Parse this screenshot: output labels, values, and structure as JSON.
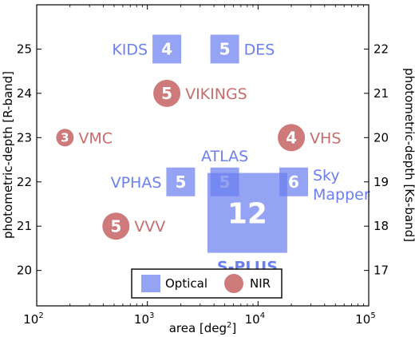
{
  "chart_data": {
    "type": "scatter",
    "xlabel": "area [deg²]",
    "ylabel_left": "photometric-depth [R-band]",
    "ylabel_right": "photometric-depth [Ks-band]",
    "x_scale": "log",
    "xlim": [
      100,
      100000
    ],
    "ylim_left": [
      19.2,
      26
    ],
    "ylim_right": [
      16.2,
      23
    ],
    "x_ticks": [
      {
        "value": 100,
        "base": "10",
        "exp": "2"
      },
      {
        "value": 1000,
        "base": "10",
        "exp": "3"
      },
      {
        "value": 10000,
        "base": "10",
        "exp": "4"
      },
      {
        "value": 100000,
        "base": "10",
        "exp": "5"
      }
    ],
    "y_ticks_left": [
      "20",
      "21",
      "22",
      "23",
      "24",
      "25"
    ],
    "y_ticks_right": [
      "17",
      "18",
      "19",
      "20",
      "21",
      "22"
    ],
    "legend": {
      "placement": "bottom-center",
      "entries": [
        {
          "label": "Optical",
          "shape": "square",
          "color": "#6b7ff0"
        },
        {
          "label": "NIR",
          "shape": "circle",
          "color": "#c96b6b"
        }
      ]
    },
    "series": [
      {
        "name": "Optical",
        "color": "#6b7ff0",
        "points": [
          {
            "label": "KIDS",
            "area": 1500,
            "depth_r": 25.0,
            "filters": 4,
            "label_side": "left"
          },
          {
            "label": "DES",
            "area": 5000,
            "depth_r": 25.0,
            "filters": 5,
            "label_side": "right"
          },
          {
            "label": "VPHAS",
            "area": 2000,
            "depth_r": 22.0,
            "filters": 5,
            "label_side": "left"
          },
          {
            "label": "ATLAS",
            "area": 5000,
            "depth_r": 22.0,
            "filters": 5,
            "label_side": "top"
          },
          {
            "label": "Sky\nMapper",
            "area": 21000,
            "depth_r": 22.0,
            "filters": 6,
            "label_side": "right"
          },
          {
            "label": "S-PLUS",
            "area": 8000,
            "depth_r": 21.3,
            "filters": 12,
            "label_side": "bottom"
          }
        ]
      },
      {
        "name": "NIR",
        "color": "#c96b6b",
        "points": [
          {
            "label": "VIKINGS",
            "area": 1500,
            "depth_ks": 21.0,
            "filters": 5,
            "label_side": "right"
          },
          {
            "label": "VMC",
            "area": 180,
            "depth_ks": 20.0,
            "filters": 3,
            "label_side": "right"
          },
          {
            "label": "VHS",
            "area": 20000,
            "depth_ks": 20.0,
            "filters": 4,
            "label_side": "right"
          },
          {
            "label": "VVV",
            "area": 520,
            "depth_ks": 18.0,
            "filters": 5,
            "label_side": "right"
          }
        ]
      }
    ]
  }
}
